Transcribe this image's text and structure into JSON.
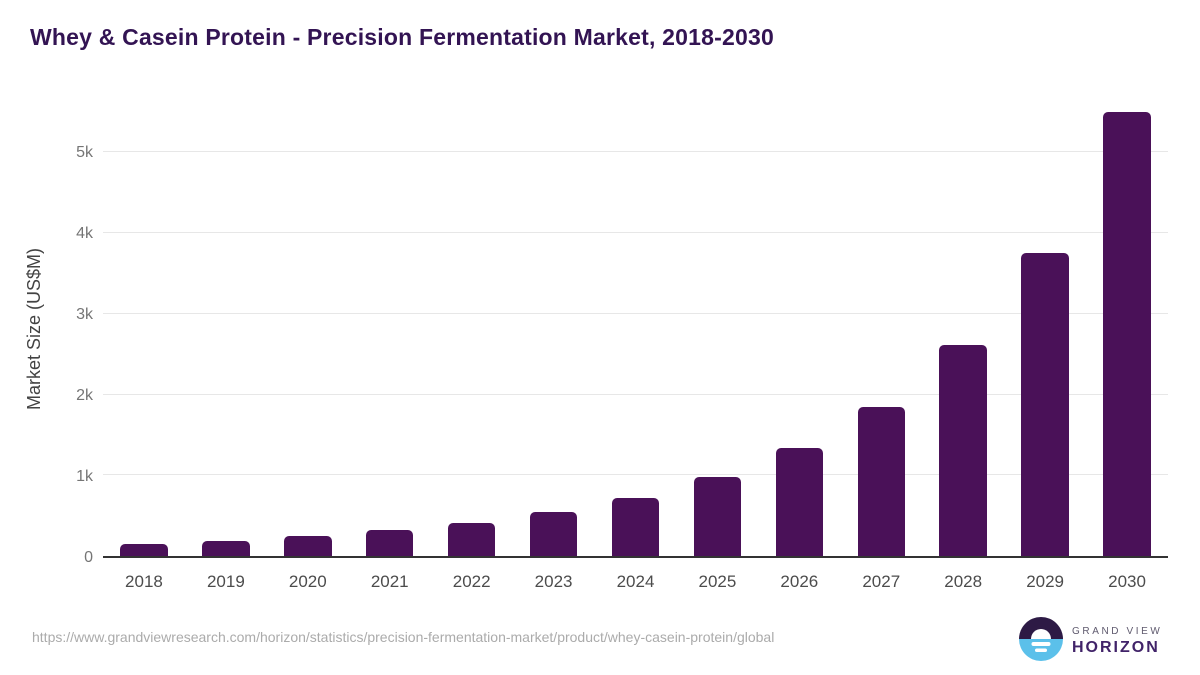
{
  "chart_data": {
    "type": "bar",
    "title": "Whey & Casein Protein - Precision Fermentation Market, 2018-2030",
    "categories": [
      "2018",
      "2019",
      "2020",
      "2021",
      "2022",
      "2023",
      "2024",
      "2025",
      "2026",
      "2027",
      "2028",
      "2029",
      "2030"
    ],
    "values": [
      155,
      192,
      245,
      318,
      415,
      540,
      725,
      975,
      1335,
      1850,
      2615,
      3750,
      5500
    ],
    "xlabel": "",
    "ylabel": "Market Size (US$M)",
    "ylim": [
      0,
      5650
    ],
    "ytick_values": [
      0,
      1000,
      2000,
      3000,
      4000,
      5000
    ],
    "ytick_labels": [
      "0",
      "1k",
      "2k",
      "3k",
      "4k",
      "5k"
    ],
    "grid": "horizontal",
    "legend": "none",
    "bar_color": "#4a1158"
  },
  "colors": {
    "title": "#331453",
    "bar": "#4a1158",
    "gridline": "#e7e7e7",
    "axis_line": "#333333",
    "logo_circle_top": "#2d1a45",
    "logo_circle_bottom": "#5bc0ea"
  },
  "footer": {
    "source_url": "https://www.grandviewresearch.com/horizon/statistics/precision-fermentation-market/product/whey-casein-protein/global",
    "logo": {
      "line1": "GRAND VIEW",
      "line2": "HORIZON"
    }
  }
}
